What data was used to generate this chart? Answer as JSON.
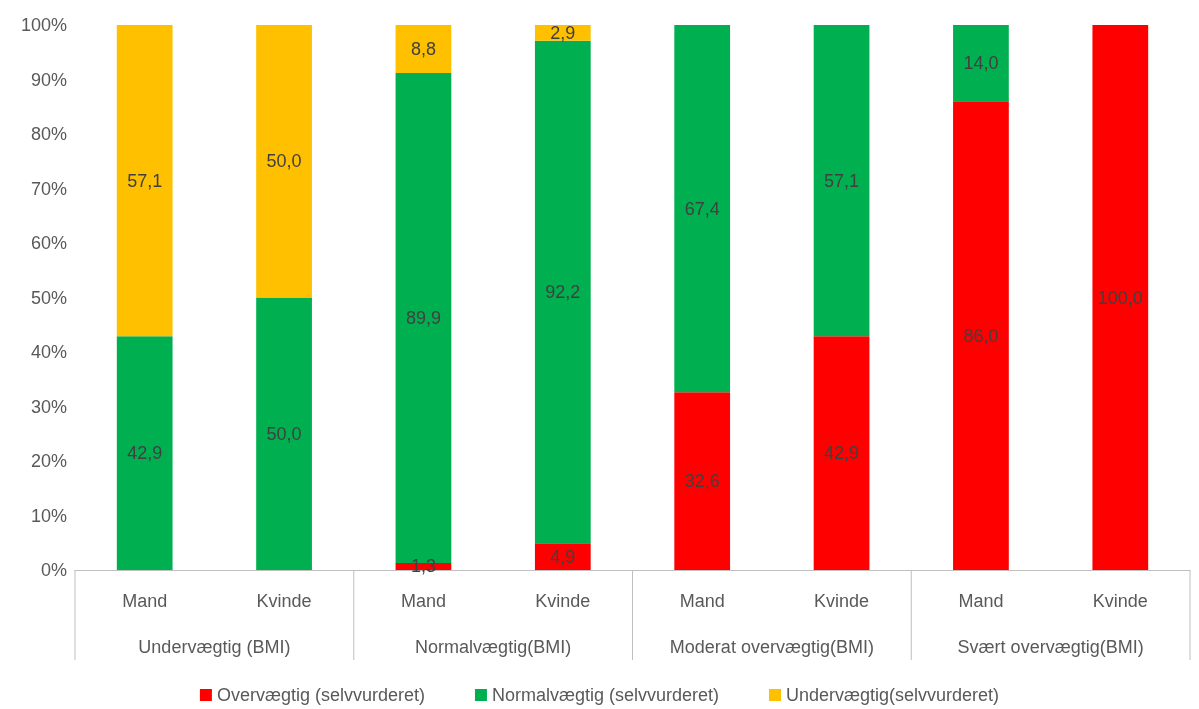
{
  "chart_data": {
    "type": "bar",
    "stacked": true,
    "categories": [
      "Mand",
      "Kvinde",
      "Mand",
      "Kvinde",
      "Mand",
      "Kvinde",
      "Mand",
      "Kvinde"
    ],
    "annotations": [
      "Undervægtig (BMI)",
      "Normalvægtig(BMI)",
      "Moderat overvægtig(BMI)",
      "Svært overvægtig(BMI)"
    ],
    "series": [
      {
        "name": "Overvægtig (selvvurderet)",
        "color": "#ff0000",
        "values": [
          null,
          null,
          1.3,
          4.9,
          32.6,
          42.9,
          86.0,
          100.0
        ],
        "value_labels": [
          null,
          null,
          "1,3",
          "4,9",
          "32,6",
          "42,9",
          "86,0",
          "100,0"
        ]
      },
      {
        "name": "Normalvægtig (selvvurderet)",
        "color": "#00b050",
        "values": [
          42.9,
          50.0,
          89.9,
          92.2,
          67.4,
          57.1,
          14.0,
          null
        ],
        "value_labels": [
          "42,9",
          "50,0",
          "89,9",
          "92,2",
          "67,4",
          "57,1",
          "14,0",
          null
        ]
      },
      {
        "name": "Undervægtig(selvvurderet)",
        "color": "#ffc000",
        "values": [
          57.1,
          50.0,
          8.8,
          2.9,
          null,
          null,
          null,
          null
        ],
        "value_labels": [
          "57,1",
          "50,0",
          "8,8",
          "2,9",
          null,
          null,
          null,
          null
        ]
      }
    ],
    "ylim": [
      0,
      100
    ],
    "yticks": [
      {
        "value": 0,
        "label": "0%"
      },
      {
        "value": 10,
        "label": "10%"
      },
      {
        "value": 20,
        "label": "20%"
      },
      {
        "value": 30,
        "label": "30%"
      },
      {
        "value": 40,
        "label": "40%"
      },
      {
        "value": 50,
        "label": "50%"
      },
      {
        "value": 60,
        "label": "60%"
      },
      {
        "value": 70,
        "label": "70%"
      },
      {
        "value": 80,
        "label": "80%"
      },
      {
        "value": 90,
        "label": "90%"
      },
      {
        "value": 100,
        "label": "100%"
      }
    ],
    "grid": false,
    "legend": "bottom"
  }
}
